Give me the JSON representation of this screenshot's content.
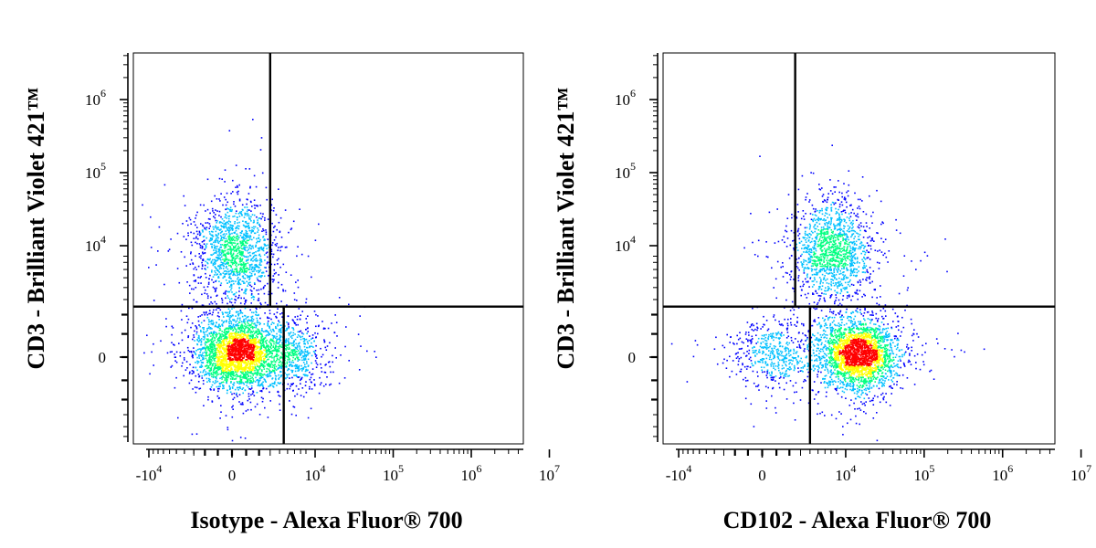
{
  "colors": {
    "frame": "#000000",
    "gate": "#000000",
    "density_low": "#0000ff",
    "density_mid_low": "#00c0ff",
    "density_mid": "#00ff80",
    "density_mid_high": "#ffff00",
    "density_high": "#ff0000"
  },
  "chart_data": [
    {
      "type": "scatter",
      "subtype": "flow-cytometry-density-dot-plot",
      "xlabel": "Isotype - Alexa Fluor® 700",
      "ylabel": "CD3 - Brilliant Violet 421™",
      "x_scale": "biexponential",
      "y_scale": "biexponential",
      "x_ticks": [
        {
          "value": -10000,
          "base": "-10",
          "exp": "4"
        },
        {
          "value": 0,
          "base": "0",
          "exp": ""
        },
        {
          "value": 10000,
          "base": "10",
          "exp": "4"
        },
        {
          "value": 100000,
          "base": "10",
          "exp": "5"
        },
        {
          "value": 1000000,
          "base": "10",
          "exp": "6"
        },
        {
          "value": 10000000,
          "base": "10",
          "exp": "7"
        }
      ],
      "y_ticks": [
        {
          "value": 0,
          "base": "0",
          "exp": ""
        },
        {
          "value": 10000,
          "base": "10",
          "exp": "4"
        },
        {
          "value": 100000,
          "base": "10",
          "exp": "5"
        },
        {
          "value": 1000000,
          "base": "10",
          "exp": "6"
        }
      ],
      "quadrant_gate": {
        "y_split": 2500,
        "x_split_upper": 3000,
        "x_split_lower": 4500
      },
      "populations": [
        {
          "x": 200,
          "y": 9000,
          "n": 1400
        },
        {
          "x": 300,
          "y": 200,
          "n": 2600
        },
        {
          "x": 5000,
          "y": 150,
          "n": 700
        }
      ],
      "grid": false,
      "legend": "none"
    },
    {
      "type": "scatter",
      "subtype": "flow-cytometry-density-dot-plot",
      "xlabel": "CD102 - Alexa Fluor® 700",
      "ylabel": "CD3 - Brilliant Violet 421™",
      "x_scale": "biexponential",
      "y_scale": "biexponential",
      "x_ticks": [
        {
          "value": -10000,
          "base": "-10",
          "exp": "4"
        },
        {
          "value": 0,
          "base": "0",
          "exp": ""
        },
        {
          "value": 10000,
          "base": "10",
          "exp": "4"
        },
        {
          "value": 100000,
          "base": "10",
          "exp": "5"
        },
        {
          "value": 1000000,
          "base": "10",
          "exp": "6"
        },
        {
          "value": 10000000,
          "base": "10",
          "exp": "7"
        }
      ],
      "y_ticks": [
        {
          "value": 0,
          "base": "0",
          "exp": ""
        },
        {
          "value": 10000,
          "base": "10",
          "exp": "4"
        },
        {
          "value": 100000,
          "base": "10",
          "exp": "5"
        },
        {
          "value": 1000000,
          "base": "10",
          "exp": "6"
        }
      ],
      "quadrant_gate": {
        "y_split": 2500,
        "x_split_upper": 2500,
        "x_split_lower": 4000
      },
      "populations": [
        {
          "x": 7000,
          "y": 9000,
          "n": 1400
        },
        {
          "x": 14000,
          "y": 150,
          "n": 2600
        },
        {
          "x": 600,
          "y": 150,
          "n": 500
        }
      ],
      "grid": false,
      "legend": "none"
    }
  ]
}
